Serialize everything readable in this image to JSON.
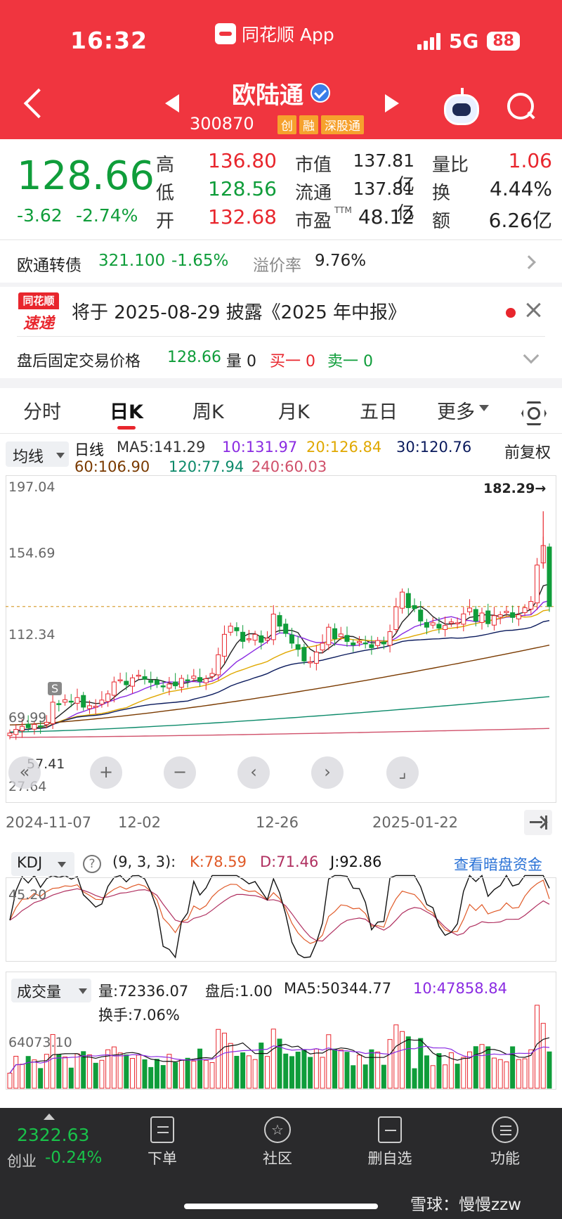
{
  "status_bar": {
    "time": "16:32",
    "app_name": "同花顺 App",
    "network": "5G",
    "battery": "88"
  },
  "header": {
    "stock_name": "欧陆通",
    "stock_code": "300870",
    "tags": [
      "创",
      "融",
      "深股通"
    ]
  },
  "quote": {
    "price": "128.66",
    "change": "-3.62",
    "change_pct": "-2.74%",
    "high_label": "高",
    "high": "136.80",
    "low_label": "低",
    "low": "128.56",
    "open_label": "开",
    "open": "132.68",
    "mktcap_label": "市值",
    "mktcap": "137.81亿",
    "float_label": "流通",
    "float_cap": "137.81亿",
    "pe_label": "市盈",
    "pe_sup": "TTM",
    "pe": "48.12",
    "vol_ratio_label": "量比",
    "vol_ratio": "1.06",
    "turnover_label": "换",
    "turnover": "4.44%",
    "amount_label": "额",
    "amount": "6.26亿"
  },
  "bond": {
    "name": "欧通转债",
    "price": "321.100",
    "pct": "-1.65%",
    "premium_label": "溢价率",
    "premium": "9.76%"
  },
  "news": {
    "logo_top": "同花顺",
    "logo_bottom": "速递",
    "text": "将于 2025-08-29 披露《2025 年中报》"
  },
  "after_hours": {
    "label": "盘后固定交易价格",
    "price": "128.66",
    "volume": "量 0",
    "bid": "买一 0",
    "ask": "卖一 0"
  },
  "tabs": [
    "分时",
    "日K",
    "周K",
    "月K",
    "五日",
    "更多"
  ],
  "ma_legend": {
    "selector": "均线",
    "period": "日线",
    "ma5": "MA5:141.29",
    "ma10": "10:131.97",
    "ma20": "20:126.84",
    "ma30": "30:120.76",
    "ma60": "60:106.90",
    "ma120": "120:77.94",
    "ma240": "240:60.03",
    "adjust": "前复权"
  },
  "kline": {
    "y_ticks": [
      "197.04",
      "154.69",
      "112.34",
      "69.99",
      "27.64"
    ],
    "low_marker": "57.41",
    "high_marker": "182.29→",
    "s_marker": "S",
    "dates": [
      "2024-11-07",
      "12-02",
      "12-26",
      "2025-01-22"
    ],
    "controls": [
      "«",
      "+",
      "−",
      "‹",
      "›",
      "⌟"
    ]
  },
  "chart_data": [
    {
      "type": "candlestick",
      "title": "日K",
      "x_labels": [
        "2024-11-07",
        "12-02",
        "12-26",
        "2025-01-22"
      ],
      "ylim": [
        27.64,
        197.04
      ],
      "y_ticks": [
        197.04,
        154.69,
        112.34,
        69.99,
        27.64
      ],
      "last_close": 128.66,
      "high_marker": 182.29,
      "low_marker": 57.41,
      "close_series": [
        57.4,
        59.5,
        61.2,
        60.4,
        62.3,
        61.0,
        63.5,
        74.8,
        73.6,
        76.2,
        75.0,
        77.4,
        72.0,
        72.8,
        72.5,
        76.0,
        79.5,
        86.2,
        87.4,
        84.6,
        88.5,
        90.0,
        87.8,
        85.9,
        84.8,
        83.5,
        85.0,
        84.0,
        88.2,
        87.0,
        89.5,
        86.5,
        88.0,
        91.0,
        101.5,
        113.0,
        117.6,
        115.0,
        109.0,
        110.5,
        113.0,
        108.5,
        110.8,
        124.4,
        117.6,
        113.5,
        108.0,
        104.5,
        98.0,
        97.5,
        103.0,
        108.0,
        117.0,
        110.5,
        113.2,
        109.0,
        107.0,
        109.0,
        108.0,
        105.5,
        109.5,
        107.6,
        114.5,
        128.5,
        136.8,
        128.0,
        127.5,
        120.5,
        117.0,
        119.5,
        116.5,
        118.0,
        120.0,
        119.5,
        124.5,
        127.8,
        120.5,
        125.0,
        119.0,
        123.5,
        124.0,
        126.0,
        122.5,
        124.0,
        128.0,
        131.5,
        152.0,
        163.0,
        128.66
      ],
      "series": [
        {
          "name": "MA5",
          "last": 141.29,
          "color": "#222222"
        },
        {
          "name": "MA10",
          "last": 131.97,
          "color": "#8a2be2"
        },
        {
          "name": "MA20",
          "last": 126.84,
          "color": "#e0a800"
        },
        {
          "name": "MA30",
          "last": 120.76,
          "color": "#0a1a5c"
        },
        {
          "name": "MA60",
          "last": 106.9,
          "color": "#7a3a00"
        },
        {
          "name": "MA120",
          "last": 77.94,
          "color": "#0c8a6a"
        },
        {
          "name": "MA240",
          "last": 60.03,
          "color": "#d0506a"
        }
      ]
    },
    {
      "type": "line",
      "title": "KDJ",
      "params": "(9, 3, 3)",
      "series": [
        {
          "name": "K",
          "last": 78.59,
          "color": "#e05a28"
        },
        {
          "name": "D",
          "last": 71.46,
          "color": "#b03060"
        },
        {
          "name": "J",
          "last": 92.86,
          "color": "#111111"
        }
      ],
      "level": 45.2
    },
    {
      "type": "bar",
      "title": "成交量",
      "level": 64073.1,
      "series": [
        {
          "name": "量",
          "last": 72336.07
        },
        {
          "name": "MA5",
          "last": 50344.77,
          "color": "#111111"
        },
        {
          "name": "MA10",
          "last": 47858.84,
          "color": "#8a2be2"
        }
      ]
    }
  ],
  "kdj": {
    "selector": "KDJ",
    "params": "(9, 3, 3):",
    "k": "K:78.59",
    "d": "D:71.46",
    "j": "J:92.86",
    "link": "查看暗盘资金",
    "level": "45.20"
  },
  "volume": {
    "selector": "成交量",
    "vol": "量:72336.07",
    "after": "盘后:1.00",
    "ma5": "MA5:50344.77",
    "ma10": "10:47858.84",
    "turnover": "换手:7.06%",
    "level": "64073.10"
  },
  "bottom_bar": {
    "index_value": "2322.63",
    "index_name": "创业",
    "index_pct": "-0.24%",
    "nav": [
      "下单",
      "社区",
      "删自选",
      "功能"
    ]
  },
  "watermark": "雪球：慢慢zzw",
  "colors": {
    "up": "#e8262d",
    "down": "#0f9d3a",
    "header": "#f0353f"
  }
}
